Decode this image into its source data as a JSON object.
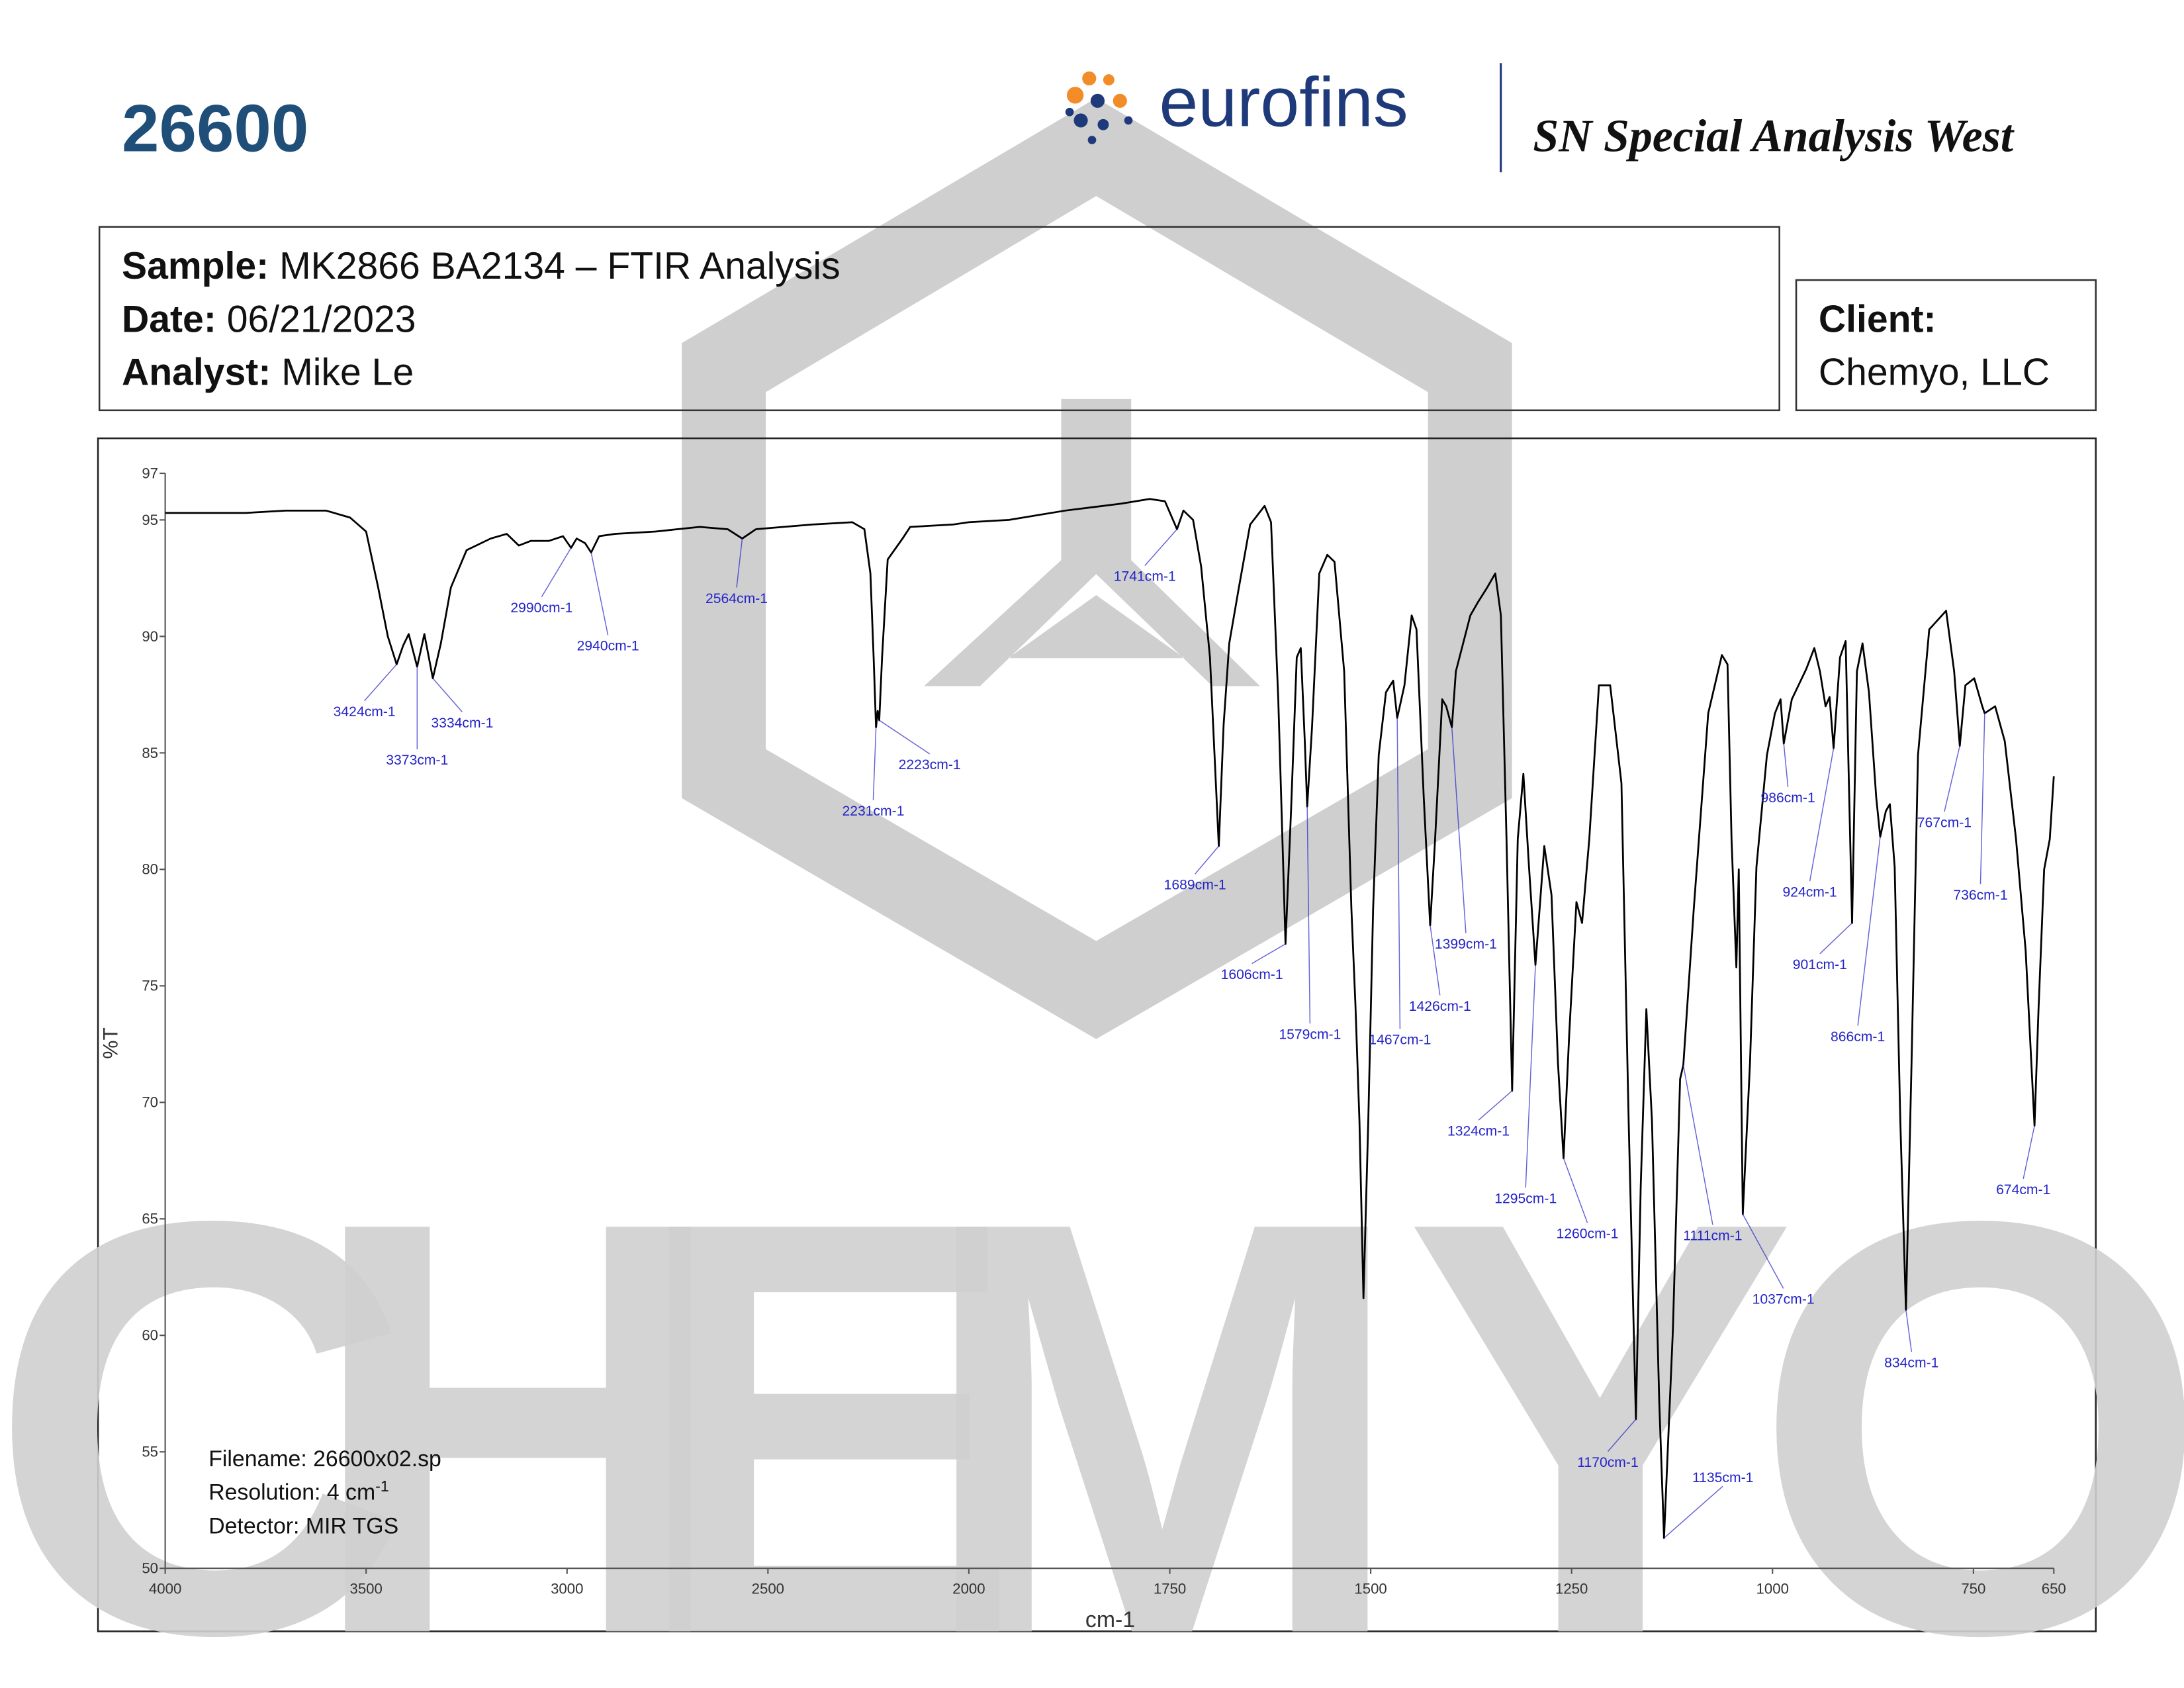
{
  "header": {
    "id": "26600",
    "brand": "eurofins",
    "lab": "SN Special Analysis West"
  },
  "sample_info": {
    "sample_label": "Sample:",
    "sample": "MK2866 BA2134 – FTIR Analysis",
    "date_label": "Date:",
    "date": "06/21/2023",
    "analyst_label": "Analyst:",
    "analyst": "Mike Le"
  },
  "client": {
    "label": "Client:",
    "name": "Chemyo, LLC"
  },
  "watermark": [
    "C",
    "H",
    "E",
    "M",
    "Y",
    "O"
  ],
  "chart_data": {
    "type": "line",
    "x_label": "cm-1",
    "y_label": "%T",
    "color": "#000000",
    "annotation_color": "#2424c8",
    "xlim": [
      4000,
      650
    ],
    "x_scale_change": {
      "at": 2000,
      "factor": 2
    },
    "xticks": [
      4000,
      3500,
      3000,
      2500,
      2000,
      1750,
      1500,
      1250,
      1000,
      750,
      650
    ],
    "ylim": [
      50,
      97
    ],
    "yticks": [
      50,
      55,
      60,
      65,
      70,
      75,
      80,
      85,
      90,
      95,
      97
    ],
    "notes": [
      {
        "text": "Filename: 26600x02.sp"
      },
      {
        "text": "Resolution: 4 cm",
        "sup": "-1"
      },
      {
        "text": "Detector: MIR TGS"
      }
    ],
    "x": [
      4000,
      3900,
      3800,
      3700,
      3600,
      3540,
      3500,
      3470,
      3446,
      3424,
      3408,
      3394,
      3373,
      3355,
      3334,
      3314,
      3289,
      3250,
      3190,
      3150,
      3120,
      3090,
      3045,
      3010,
      2990,
      2976,
      2955,
      2940,
      2920,
      2880,
      2780,
      2670,
      2600,
      2564,
      2530,
      2390,
      2290,
      2260,
      2245,
      2237,
      2231,
      2227,
      2223,
      2216,
      2202,
      2165,
      2146,
      2040,
      2000,
      1950,
      1880,
      1810,
      1775,
      1756,
      1741,
      1733,
      1721,
      1711,
      1700,
      1689,
      1683,
      1676,
      1664,
      1650,
      1632,
      1624,
      1615,
      1606,
      1599,
      1592,
      1587,
      1582,
      1579,
      1573,
      1564,
      1554,
      1545,
      1533,
      1524,
      1519,
      1514,
      1509,
      1503,
      1497,
      1490,
      1481,
      1472,
      1467,
      1458,
      1449,
      1443,
      1434,
      1426,
      1420,
      1411,
      1406,
      1399,
      1394,
      1385,
      1376,
      1366,
      1355,
      1345,
      1338,
      1331,
      1324,
      1317,
      1310,
      1303,
      1295,
      1284,
      1275,
      1267,
      1260,
      1253,
      1244,
      1237,
      1228,
      1216,
      1202,
      1188,
      1179,
      1170,
      1164,
      1157,
      1150,
      1141,
      1135,
      1124,
      1115,
      1111,
      1098,
      1080,
      1063,
      1056,
      1051,
      1045,
      1042,
      1037,
      1028,
      1020,
      1007,
      997,
      990,
      986,
      976,
      958,
      948,
      941,
      934,
      929,
      924,
      916,
      909,
      901,
      895,
      888,
      880,
      871,
      866,
      859,
      854,
      848,
      841,
      834,
      827,
      819,
      805,
      784,
      774,
      767,
      760,
      749,
      739,
      736,
      723,
      711,
      697,
      685,
      674,
      669,
      662,
      655,
      650
    ],
    "values": [
      95.3,
      95.3,
      95.3,
      95.4,
      95.4,
      95.1,
      94.5,
      92.1,
      90.0,
      88.8,
      89.6,
      90.1,
      88.7,
      90.1,
      88.2,
      89.7,
      92.1,
      93.7,
      94.2,
      94.4,
      93.9,
      94.1,
      94.1,
      94.3,
      93.8,
      94.2,
      94.0,
      93.6,
      94.3,
      94.4,
      94.5,
      94.7,
      94.6,
      94.2,
      94.6,
      94.8,
      94.9,
      94.6,
      92.7,
      89.1,
      86.1,
      86.8,
      86.4,
      89.1,
      93.3,
      94.2,
      94.7,
      94.8,
      94.9,
      95.0,
      95.4,
      95.7,
      95.9,
      95.8,
      94.6,
      95.4,
      95.0,
      93.0,
      89.1,
      81.0,
      86.2,
      89.7,
      92.1,
      94.8,
      95.6,
      94.9,
      87.3,
      76.8,
      82.6,
      89.1,
      89.5,
      85.5,
      82.7,
      86.1,
      92.7,
      93.5,
      93.2,
      88.5,
      78.3,
      74.2,
      69.2,
      61.6,
      69.2,
      78.3,
      84.9,
      87.6,
      88.1,
      86.5,
      87.9,
      90.9,
      90.3,
      83.1,
      77.6,
      81.2,
      87.3,
      87.0,
      86.1,
      88.5,
      89.7,
      90.9,
      91.5,
      92.1,
      92.7,
      90.9,
      81.3,
      70.5,
      81.3,
      84.1,
      80.1,
      75.9,
      81.0,
      78.9,
      71.7,
      67.6,
      72.9,
      78.6,
      77.7,
      81.3,
      87.9,
      87.9,
      83.7,
      69.2,
      56.4,
      66.4,
      74.0,
      69.2,
      57.2,
      51.3,
      60.2,
      71.0,
      71.6,
      78.3,
      86.7,
      89.2,
      88.8,
      81.3,
      75.8,
      80.0,
      65.2,
      71.7,
      80.1,
      84.9,
      86.7,
      87.3,
      85.4,
      87.3,
      88.6,
      89.5,
      88.5,
      87.0,
      87.4,
      85.2,
      89.1,
      89.8,
      77.7,
      88.5,
      89.7,
      87.6,
      83.1,
      81.4,
      82.5,
      82.8,
      80.1,
      69.2,
      61.1,
      71.7,
      84.9,
      90.3,
      91.1,
      88.5,
      85.3,
      87.9,
      88.2,
      87.0,
      86.7,
      87.0,
      85.5,
      81.3,
      76.5,
      69.0,
      74.0,
      80.0,
      81.3,
      84.0
    ],
    "annotations": [
      {
        "label": "3424cm-1",
        "x": 3424,
        "y": 88.8
      },
      {
        "label": "3373cm-1",
        "x": 3373,
        "y": 88.7
      },
      {
        "label": "3334cm-1",
        "x": 3334,
        "y": 88.2
      },
      {
        "label": "2990cm-1",
        "x": 2990,
        "y": 93.8
      },
      {
        "label": "2940cm-1",
        "x": 2940,
        "y": 93.6
      },
      {
        "label": "2564cm-1",
        "x": 2564,
        "y": 94.2
      },
      {
        "label": "2231cm-1",
        "x": 2231,
        "y": 86.1
      },
      {
        "label": "2223cm-1",
        "x": 2223,
        "y": 86.4
      },
      {
        "label": "1741cm-1",
        "x": 1741,
        "y": 94.6
      },
      {
        "label": "1689cm-1",
        "x": 1689,
        "y": 81.0
      },
      {
        "label": "1606cm-1",
        "x": 1606,
        "y": 76.8
      },
      {
        "label": "1579cm-1",
        "x": 1579,
        "y": 82.7
      },
      {
        "label": "1467cm-1",
        "x": 1467,
        "y": 86.5
      },
      {
        "label": "1426cm-1",
        "x": 1426,
        "y": 77.6
      },
      {
        "label": "1399cm-1",
        "x": 1399,
        "y": 86.1
      },
      {
        "label": "1324cm-1",
        "x": 1324,
        "y": 70.5
      },
      {
        "label": "1295cm-1",
        "x": 1295,
        "y": 75.9
      },
      {
        "label": "1260cm-1",
        "x": 1260,
        "y": 67.6
      },
      {
        "label": "1170cm-1",
        "x": 1170,
        "y": 56.4
      },
      {
        "label": "1135cm-1",
        "x": 1135,
        "y": 51.3
      },
      {
        "label": "1111cm-1",
        "x": 1111,
        "y": 71.6
      },
      {
        "label": "1037cm-1",
        "x": 1037,
        "y": 65.2
      },
      {
        "label": "986cm-1",
        "x": 986,
        "y": 85.4
      },
      {
        "label": "924cm-1",
        "x": 924,
        "y": 85.2
      },
      {
        "label": "901cm-1",
        "x": 901,
        "y": 77.7
      },
      {
        "label": "866cm-1",
        "x": 866,
        "y": 81.4
      },
      {
        "label": "834cm-1",
        "x": 834,
        "y": 61.1
      },
      {
        "label": "767cm-1",
        "x": 767,
        "y": 85.3
      },
      {
        "label": "736cm-1",
        "x": 736,
        "y": 86.7
      },
      {
        "label": "674cm-1",
        "x": 674,
        "y": 69.0
      }
    ]
  }
}
